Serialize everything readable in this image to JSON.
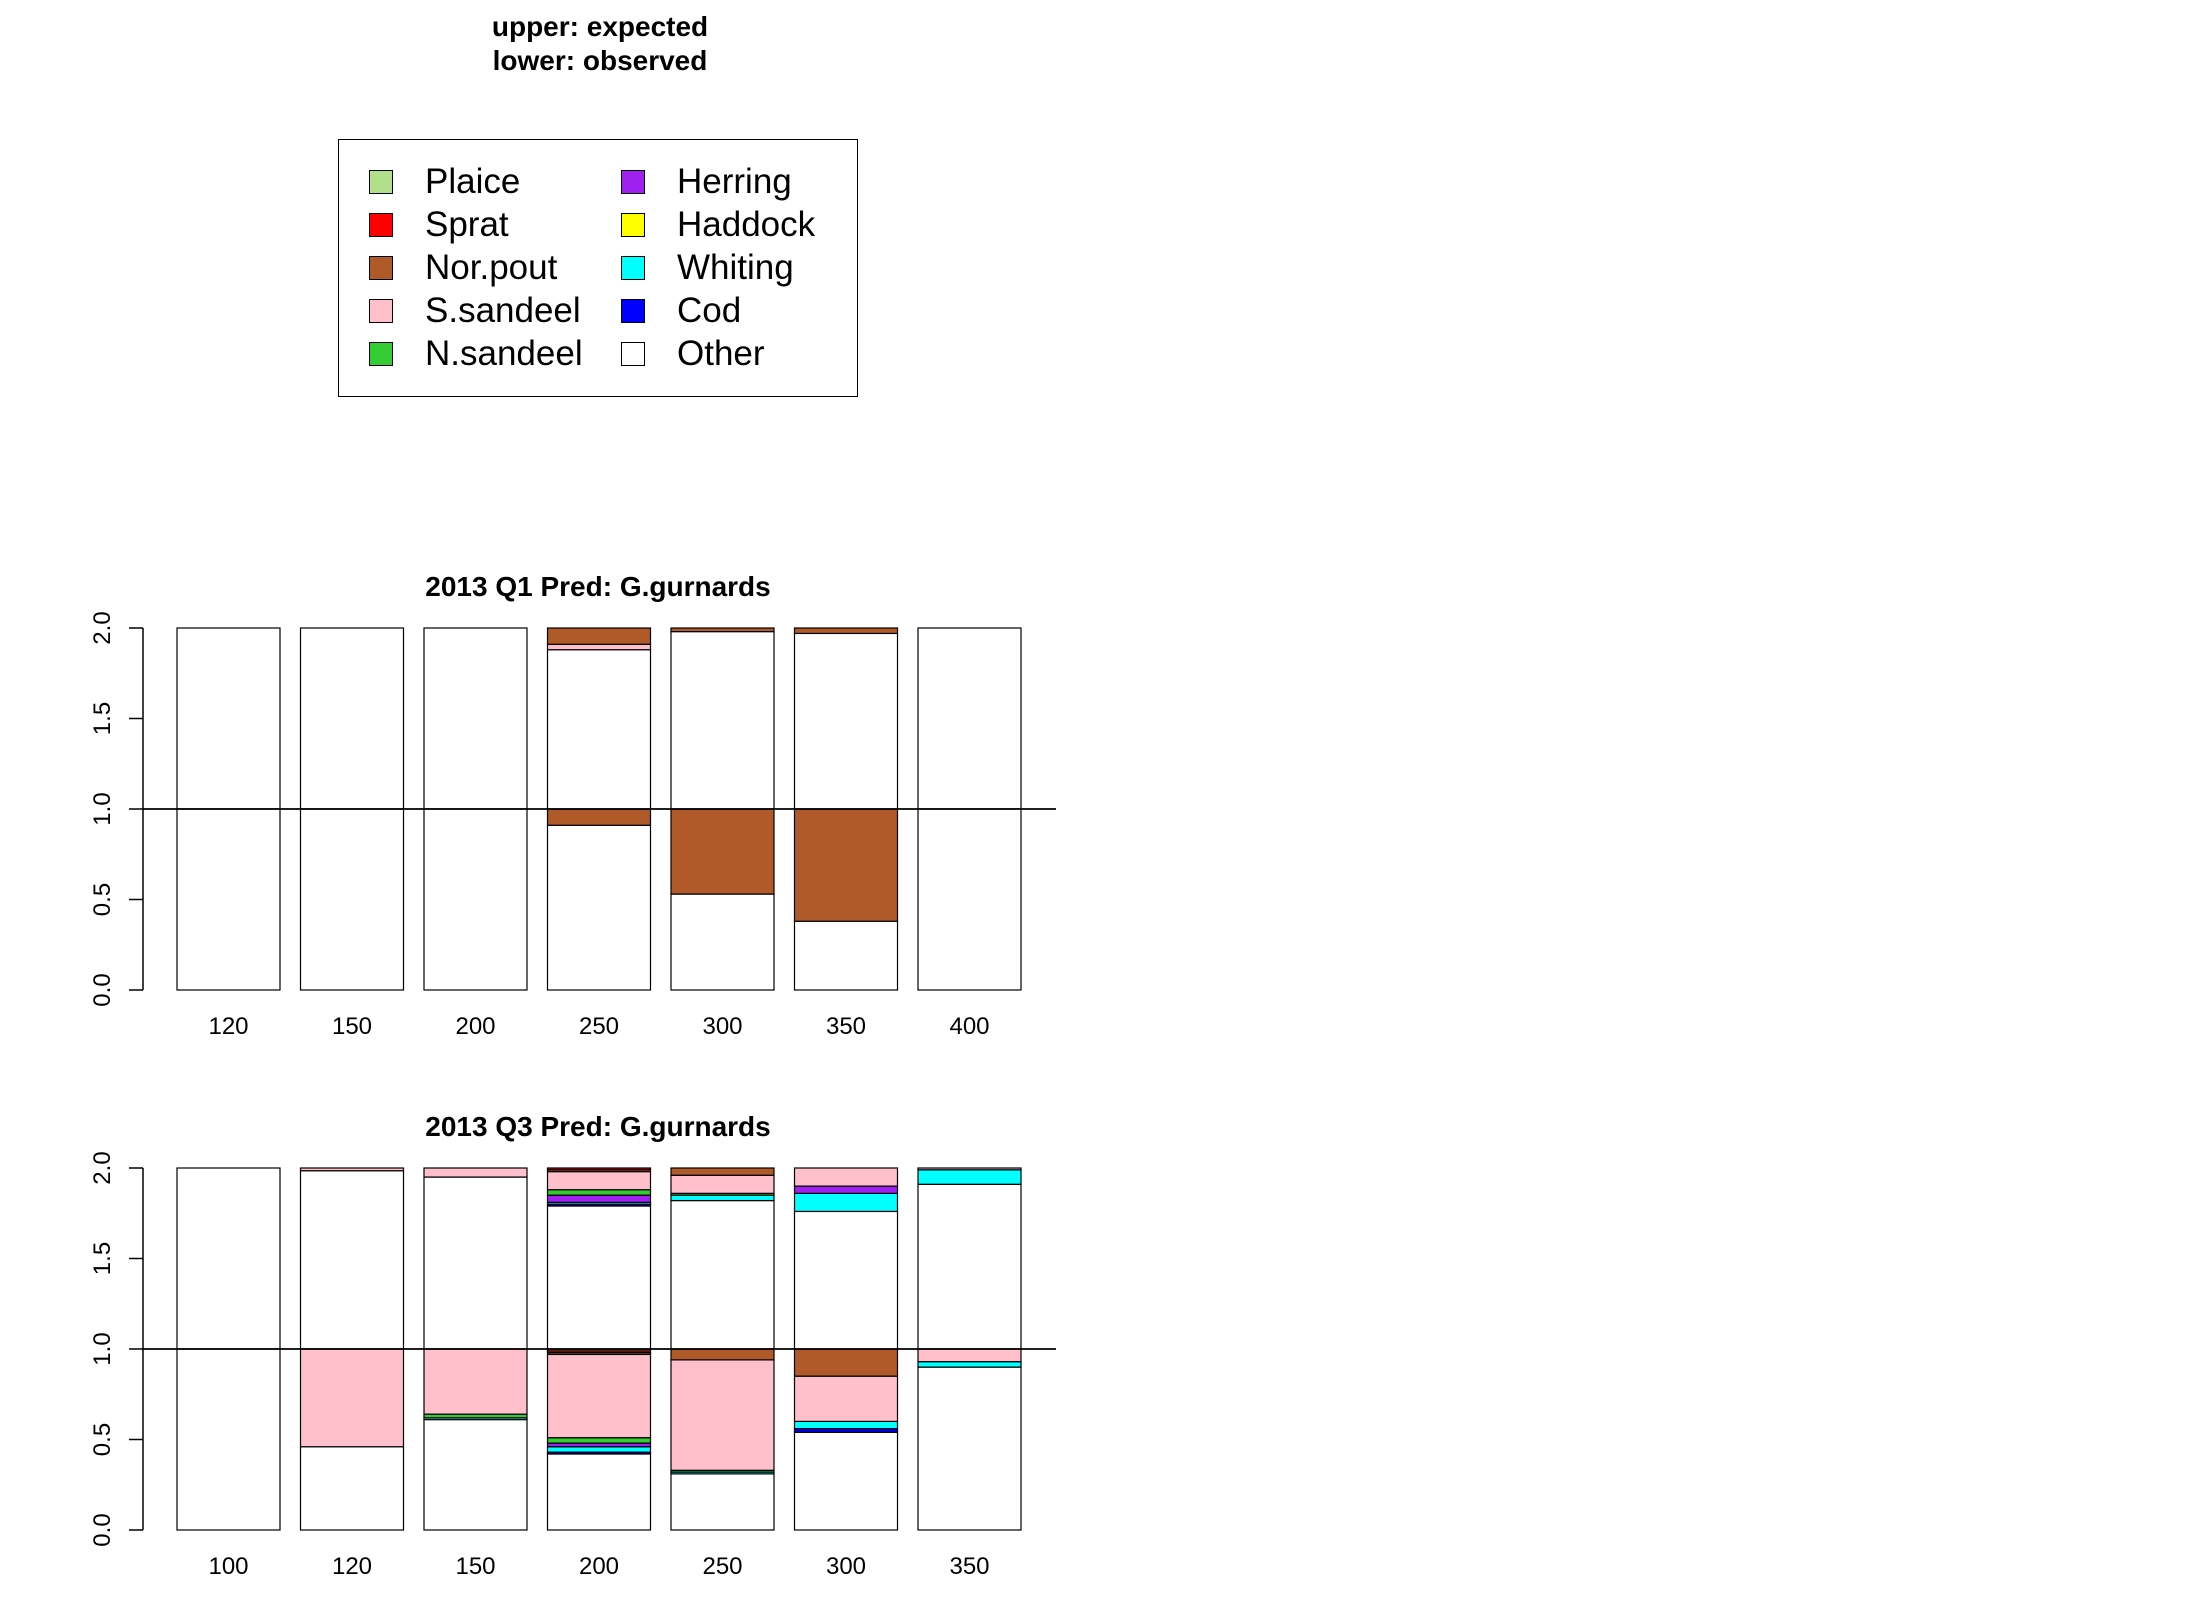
{
  "header": {
    "line1": "upper: expected",
    "line2": "lower: observed"
  },
  "legend": [
    {
      "label": "Plaice",
      "color": "#b2df8a"
    },
    {
      "label": "Sprat",
      "color": "#ff0000"
    },
    {
      "label": "Nor.pout",
      "color": "#b05a2a"
    },
    {
      "label": "S.sandeel",
      "color": "#ffc0cb"
    },
    {
      "label": "N.sandeel",
      "color": "#33cc33"
    },
    {
      "label": "Herring",
      "color": "#a020f0"
    },
    {
      "label": "Haddock",
      "color": "#ffff00"
    },
    {
      "label": "Whiting",
      "color": "#00ffff"
    },
    {
      "label": "Cod",
      "color": "#0000ff"
    },
    {
      "label": "Other",
      "color": "#ffffff"
    }
  ],
  "chart_data": [
    {
      "type": "bar",
      "title": "2013 Q1  Pred: G.gurnards",
      "categories": [
        "120",
        "150",
        "200",
        "250",
        "300",
        "350",
        "400"
      ],
      "ylim": [
        0,
        2
      ],
      "yticks": [
        "0.0",
        "0.5",
        "1.0",
        "1.5",
        "2.0"
      ],
      "reference_line": 1.0,
      "stacking_order": [
        "Other",
        "Cod",
        "Whiting",
        "Haddock",
        "Herring",
        "N.sandeel",
        "S.sandeel",
        "Nor.pout",
        "Sprat",
        "Plaice"
      ],
      "expected": [
        {
          "Other": 1.0
        },
        {
          "Other": 1.0
        },
        {
          "Other": 1.0
        },
        {
          "Other": 0.88,
          "S.sandeel": 0.03,
          "Nor.pout": 0.09
        },
        {
          "Other": 0.98,
          "Nor.pout": 0.02
        },
        {
          "Other": 0.97,
          "Nor.pout": 0.03
        },
        {
          "Other": 1.0
        }
      ],
      "observed": [
        {
          "Other": 1.0
        },
        {
          "Other": 1.0
        },
        {
          "Other": 1.0
        },
        {
          "Other": 0.91,
          "Nor.pout": 0.09
        },
        {
          "Other": 0.53,
          "Nor.pout": 0.47
        },
        {
          "Other": 0.38,
          "Nor.pout": 0.62
        },
        {
          "Other": 1.0
        }
      ]
    },
    {
      "type": "bar",
      "title": "2013 Q3  Pred: G.gurnards",
      "categories": [
        "100",
        "120",
        "150",
        "200",
        "250",
        "300",
        "350"
      ],
      "ylim": [
        0,
        2
      ],
      "yticks": [
        "0.0",
        "0.5",
        "1.0",
        "1.5",
        "2.0"
      ],
      "reference_line": 1.0,
      "stacking_order": [
        "Other",
        "Cod",
        "Whiting",
        "Haddock",
        "Herring",
        "N.sandeel",
        "S.sandeel",
        "Nor.pout",
        "Sprat",
        "Plaice"
      ],
      "expected": [
        {
          "Other": 1.0
        },
        {
          "Other": 0.985,
          "S.sandeel": 0.015
        },
        {
          "Other": 0.95,
          "S.sandeel": 0.05
        },
        {
          "Other": 0.79,
          "Cod": 0.01,
          "Whiting": 0.01,
          "Herring": 0.04,
          "N.sandeel": 0.03,
          "S.sandeel": 0.1,
          "Nor.pout": 0.01,
          "Sprat": 0.01
        },
        {
          "Other": 0.82,
          "Whiting": 0.03,
          "N.sandeel": 0.01,
          "S.sandeel": 0.1,
          "Nor.pout": 0.04
        },
        {
          "Other": 0.76,
          "Whiting": 0.1,
          "Herring": 0.04,
          "S.sandeel": 0.1
        },
        {
          "Other": 0.91,
          "Whiting": 0.08,
          "S.sandeel": 0.01
        }
      ],
      "observed": [
        {
          "Other": 1.0
        },
        {
          "Other": 0.46,
          "S.sandeel": 0.54
        },
        {
          "Other": 0.61,
          "Whiting": 0.01,
          "N.sandeel": 0.02,
          "S.sandeel": 0.36
        },
        {
          "Other": 0.42,
          "Whiting": 0.03,
          "Cod": 0.01,
          "Herring": 0.02,
          "N.sandeel": 0.03,
          "S.sandeel": 0.46,
          "Nor.pout": 0.01,
          "Sprat": 0.01,
          "Plaice": 0.01
        },
        {
          "Other": 0.31,
          "Whiting": 0.01,
          "N.sandeel": 0.01,
          "S.sandeel": 0.61,
          "Nor.pout": 0.06
        },
        {
          "Other": 0.54,
          "Whiting": 0.04,
          "Cod": 0.02,
          "S.sandeel": 0.25,
          "Nor.pout": 0.15
        },
        {
          "Other": 0.9,
          "Whiting": 0.03,
          "S.sandeel": 0.07
        }
      ]
    }
  ]
}
